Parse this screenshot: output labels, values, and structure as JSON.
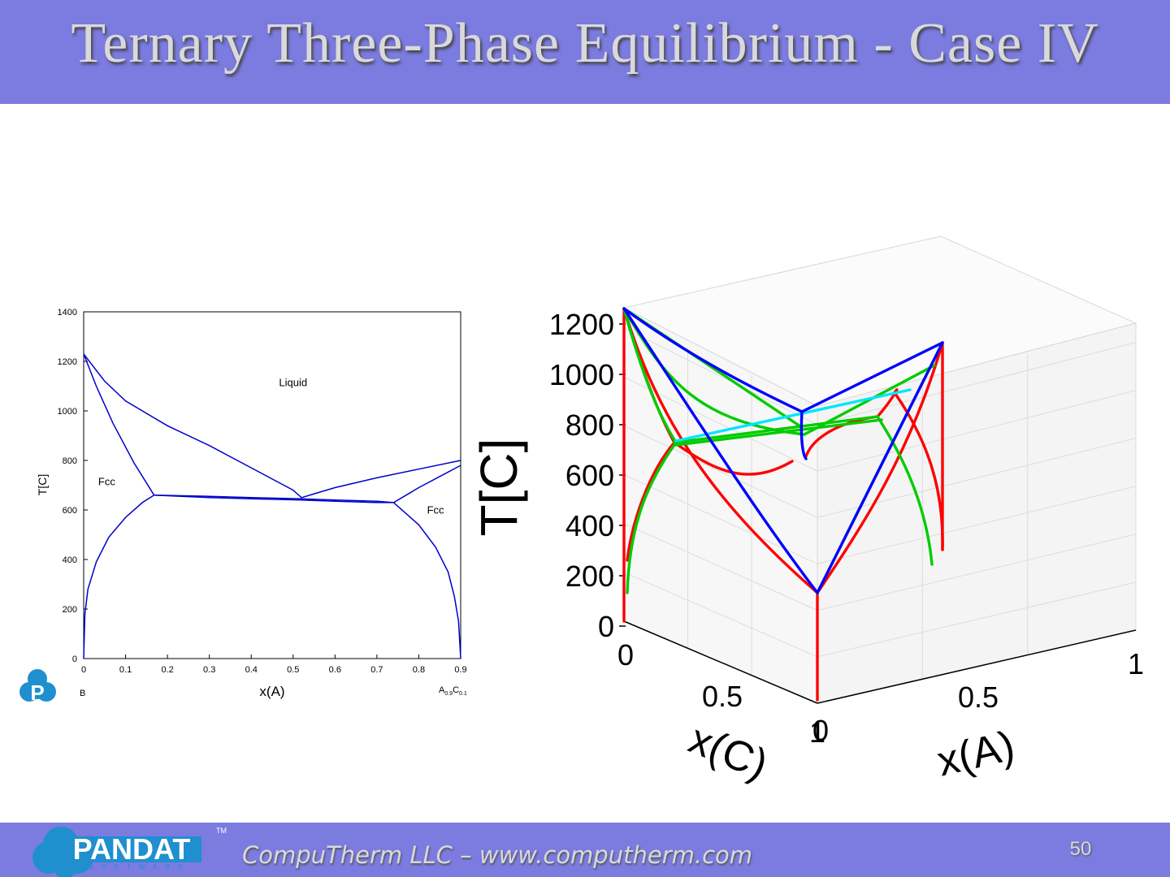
{
  "slide": {
    "title": "Ternary Three-Phase Equilibrium - Case IV",
    "footer_text": "CompuTherm LLC – www.computherm.com",
    "page_number": "50",
    "logo_text": "PANDAT",
    "logo_sub": "SOFTWARE",
    "logo_tm": "TM",
    "small_logo_letter": "P",
    "colors": {
      "bar": "#7b7be0",
      "title_text": "#d9d9d9",
      "curve": "#0000cc"
    }
  },
  "chart_data": [
    {
      "type": "line",
      "title": "",
      "xlabel": "x(A)",
      "ylabel": "T[C]",
      "xlim": [
        0,
        0.9
      ],
      "ylim": [
        0,
        1400
      ],
      "x_ticks": [
        "0",
        "0.1",
        "0.2",
        "0.3",
        "0.4",
        "0.5",
        "0.6",
        "0.7",
        "0.8",
        "0.9"
      ],
      "y_ticks": [
        "0",
        "200",
        "400",
        "600",
        "800",
        "1000",
        "1200",
        "1400"
      ],
      "endpoint_left": "B",
      "endpoint_right": {
        "base": "A",
        "sub1": "0.9",
        "mid": "C",
        "sub2": "0.1"
      },
      "region_labels": [
        {
          "text": "Liquid",
          "x": 0.5,
          "y": 1100
        },
        {
          "text": "Fcc",
          "x": 0.055,
          "y": 700
        },
        {
          "text": "Fcc",
          "x": 0.84,
          "y": 585
        }
      ],
      "series": [
        {
          "values": [
            [
              0,
              1230
            ],
            [
              0.05,
              1120
            ],
            [
              0.1,
              1040
            ],
            [
              0.2,
              940
            ],
            [
              0.3,
              860
            ],
            [
              0.4,
              770
            ],
            [
              0.5,
              680
            ],
            [
              0.52,
              650
            ]
          ]
        },
        {
          "values": [
            [
              0,
              1230
            ],
            [
              0.03,
              1100
            ],
            [
              0.07,
              950
            ],
            [
              0.12,
              790
            ],
            [
              0.168,
              660
            ]
          ]
        },
        {
          "values": [
            [
              0.52,
              650
            ],
            [
              0.6,
              690
            ],
            [
              0.7,
              730
            ],
            [
              0.8,
              765
            ],
            [
              0.9,
              800
            ]
          ]
        },
        {
          "values": [
            [
              0.74,
              630
            ],
            [
              0.77,
              660
            ],
            [
              0.8,
              690
            ],
            [
              0.85,
              735
            ],
            [
              0.9,
              780
            ]
          ]
        },
        {
          "values": [
            [
              0.168,
              660
            ],
            [
              0.3,
              655
            ],
            [
              0.4,
              650
            ],
            [
              0.52,
              645
            ],
            [
              0.6,
              640
            ],
            [
              0.7,
              635
            ],
            [
              0.74,
              630
            ]
          ]
        },
        {
          "values": [
            [
              0.168,
              660
            ],
            [
              0.3,
              650
            ],
            [
              0.4,
              645
            ],
            [
              0.52,
              640
            ],
            [
              0.6,
              635
            ],
            [
              0.7,
              630
            ],
            [
              0.74,
              630
            ]
          ]
        },
        {
          "values": [
            [
              0,
              0
            ],
            [
              0.003,
              180
            ],
            [
              0.01,
              280
            ],
            [
              0.03,
              390
            ],
            [
              0.06,
              490
            ],
            [
              0.1,
              570
            ],
            [
              0.14,
              630
            ],
            [
              0.168,
              660
            ]
          ]
        },
        {
          "values": [
            [
              0.74,
              630
            ],
            [
              0.8,
              540
            ],
            [
              0.84,
              450
            ],
            [
              0.87,
              350
            ],
            [
              0.885,
              250
            ],
            [
              0.895,
              150
            ],
            [
              0.9,
              0
            ]
          ]
        }
      ]
    },
    {
      "type": "line",
      "title": "",
      "xlabel": "x(A)",
      "ylabel": "T[C]",
      "zlabel": "x(C)",
      "z_ticks": [
        "0",
        "200",
        "400",
        "600",
        "800",
        "1000",
        "1200"
      ],
      "x_ticks": [
        "0",
        "0.5",
        "1"
      ],
      "c_ticks": [
        "0",
        "0.5",
        "1"
      ],
      "series_colors": [
        "#ff0000",
        "#00cc00",
        "#0000ff",
        "#00e5ff"
      ]
    }
  ]
}
